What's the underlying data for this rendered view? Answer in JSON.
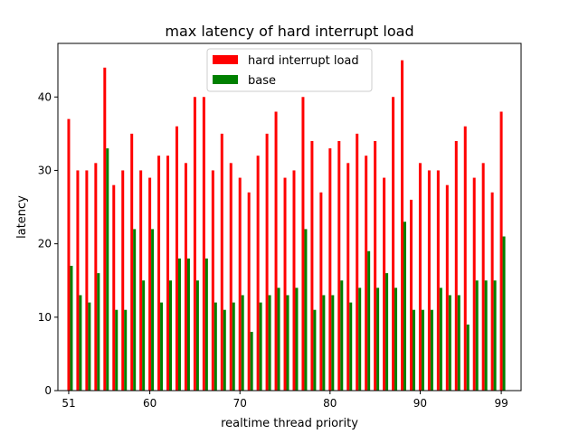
{
  "chart_data": {
    "type": "bar",
    "title": "max latency of hard interrupt load",
    "xlabel": "realtime thread priority",
    "ylabel": "latency",
    "x": [
      51,
      52,
      53,
      54,
      55,
      56,
      57,
      58,
      59,
      60,
      61,
      62,
      63,
      64,
      65,
      66,
      67,
      68,
      69,
      70,
      71,
      72,
      73,
      74,
      75,
      76,
      77,
      78,
      79,
      80,
      81,
      82,
      83,
      84,
      85,
      86,
      87,
      88,
      89,
      90,
      91,
      92,
      93,
      94,
      95,
      96,
      97,
      98,
      99
    ],
    "xlim": [
      49.8,
      101.2
    ],
    "ylim": [
      0,
      47.3
    ],
    "xticks": [
      51,
      60,
      70,
      80,
      90,
      99
    ],
    "yticks": [
      0,
      10,
      20,
      30,
      40
    ],
    "legend_position": "upper center",
    "series": [
      {
        "name": "hard interrupt load",
        "color": "#ff0000",
        "values": [
          37,
          30,
          30,
          31,
          44,
          28,
          30,
          35,
          30,
          29,
          32,
          32,
          36,
          31,
          40,
          40,
          30,
          35,
          31,
          29,
          27,
          32,
          35,
          38,
          29,
          30,
          40,
          34,
          27,
          33,
          34,
          31,
          35,
          32,
          34,
          29,
          40,
          45,
          26,
          31,
          30,
          30,
          28,
          34,
          36,
          29,
          31,
          27,
          38
        ]
      },
      {
        "name": "base",
        "color": "#008000",
        "values": [
          17,
          13,
          12,
          16,
          33,
          11,
          11,
          22,
          15,
          22,
          12,
          15,
          18,
          18,
          15,
          18,
          12,
          11,
          12,
          13,
          8,
          12,
          13,
          14,
          13,
          14,
          22,
          11,
          13,
          13,
          15,
          12,
          14,
          19,
          14,
          16,
          14,
          23,
          11,
          11,
          11,
          14,
          13,
          13,
          9,
          15,
          15,
          15,
          21
        ]
      }
    ]
  }
}
